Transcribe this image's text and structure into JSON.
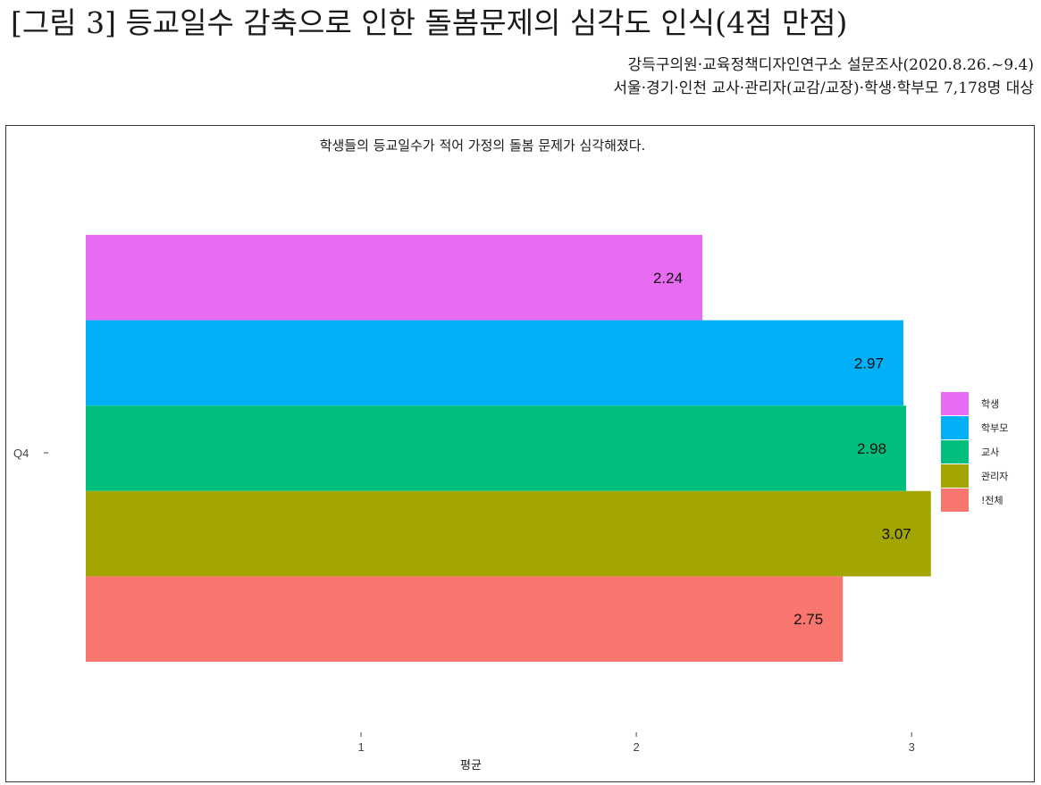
{
  "figure": {
    "title": "[그림 3] 등교일수 감축으로 인한 돌봄문제의 심각도 인식(4점 만점)",
    "source_line1": "강득구의원·교육정책디자인연구소 설문조사(2020.8.26.~9.4)",
    "source_line2": "서울·경기·인천 교사·관리자(교감/교장)·학생·학부모 7,178명 대상"
  },
  "chart_data": {
    "type": "bar",
    "orientation": "horizontal",
    "title": "학생들의 등교일수가 적어 가정의 돌봄 문제가 심각해졌다.",
    "category": "Q4",
    "xlabel": "평균",
    "ylabel": "",
    "xlim": [
      0.0,
      3.1
    ],
    "xticks": [
      1,
      2,
      3
    ],
    "grid": false,
    "legend_position": "right",
    "series": [
      {
        "name": "학생",
        "value": 2.24,
        "color": "#E76BF3"
      },
      {
        "name": "학부모",
        "value": 2.97,
        "color": "#00B0F6"
      },
      {
        "name": "교사",
        "value": 2.98,
        "color": "#00BF7D"
      },
      {
        "name": "관리자",
        "value": 3.07,
        "color": "#A3A500"
      },
      {
        "name": "!전체",
        "value": 2.75,
        "color": "#F8766D"
      }
    ]
  }
}
